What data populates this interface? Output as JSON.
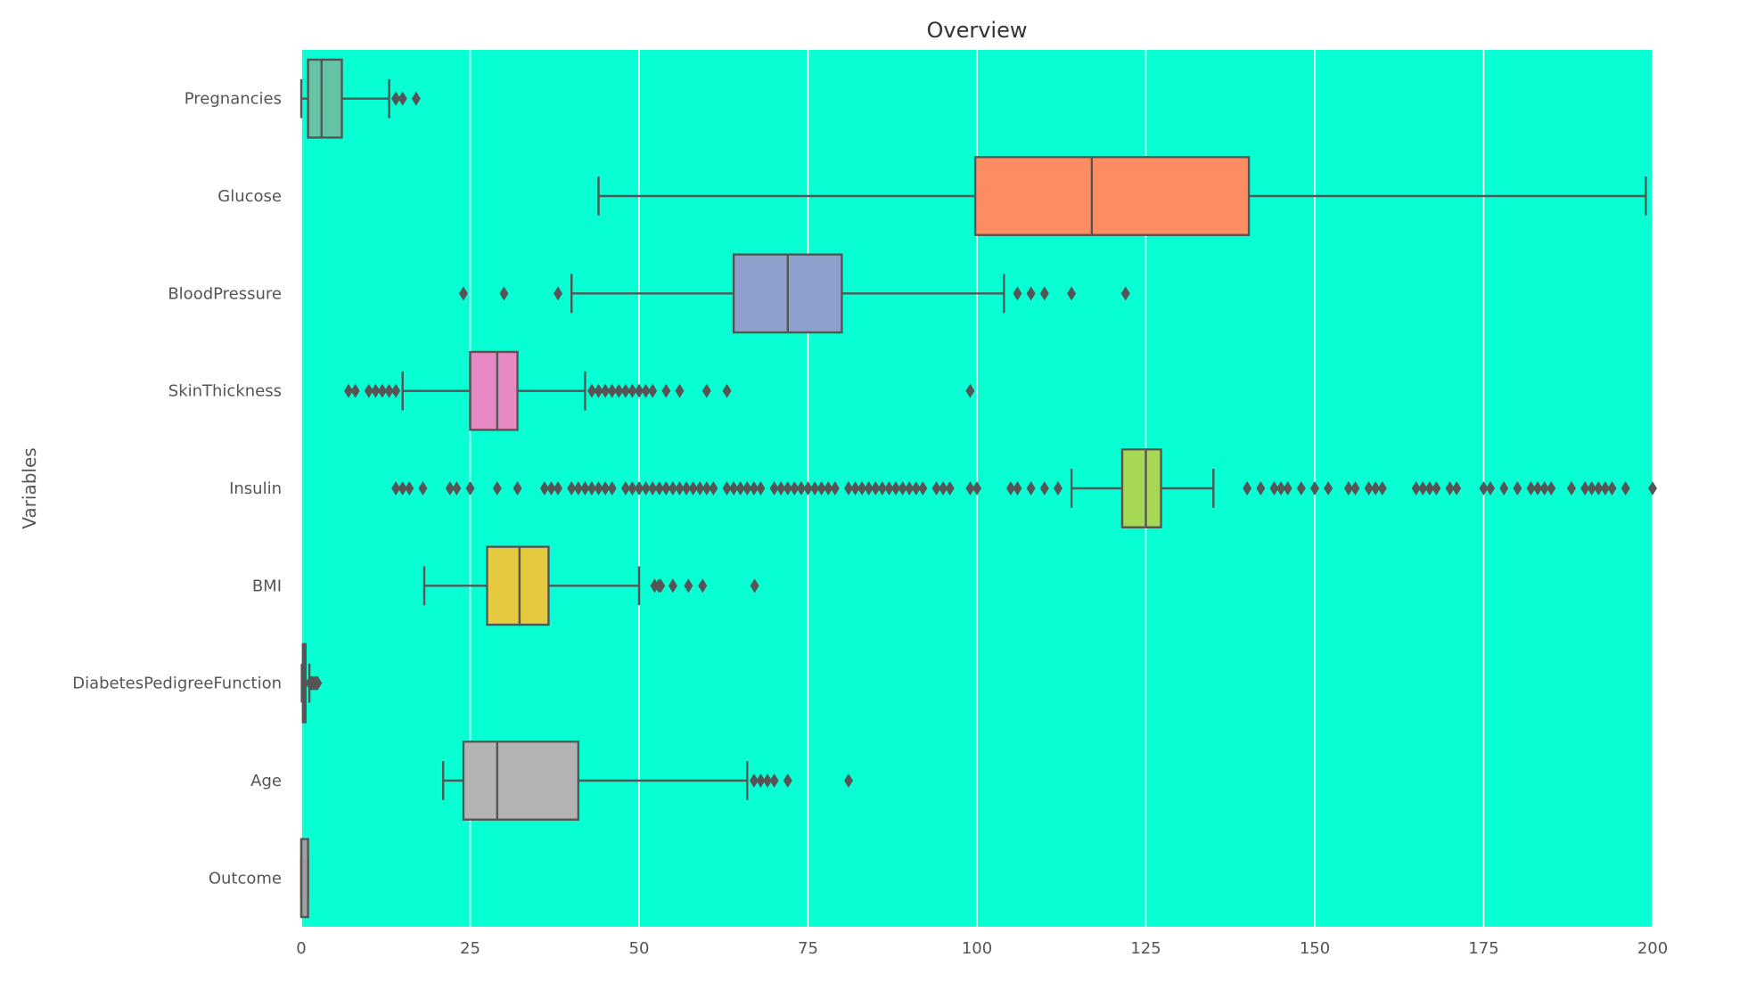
{
  "chart_data": {
    "type": "boxplot",
    "orientation": "horizontal",
    "title": "Overview",
    "xlabel": "",
    "ylabel": "Variables",
    "xlim": [
      0,
      200
    ],
    "xticks": [
      "0",
      "25",
      "50",
      "75",
      "100",
      "125",
      "150",
      "175",
      "200"
    ],
    "grid": "vertical",
    "background_color": "#08FFD3",
    "grid_color": "#FFFFFF",
    "line_color": "#555555",
    "series": [
      {
        "name": "Pregnancies",
        "color": "#66C2A5",
        "whisker_low": 0,
        "q1": 1,
        "median": 3,
        "q3": 6,
        "whisker_high": 13,
        "outliers": [
          14,
          14,
          15,
          17
        ]
      },
      {
        "name": "Glucose",
        "color": "#FC8D62",
        "whisker_low": 44,
        "q1": 99.75,
        "median": 117,
        "q3": 140.25,
        "whisker_high": 199,
        "outliers": []
      },
      {
        "name": "BloodPressure",
        "color": "#8DA0CB",
        "whisker_low": 40,
        "q1": 64,
        "median": 72,
        "q3": 80,
        "whisker_high": 104,
        "outliers": [
          24,
          30,
          38,
          106,
          108,
          110,
          114,
          122
        ]
      },
      {
        "name": "SkinThickness",
        "color": "#E78AC3",
        "whisker_low": 15,
        "q1": 25,
        "median": 29,
        "q3": 32,
        "whisker_high": 42,
        "outliers": [
          7,
          8,
          10,
          11,
          12,
          13,
          14,
          43,
          44,
          45,
          46,
          47,
          48,
          49,
          50,
          51,
          52,
          54,
          56,
          60,
          63,
          99
        ]
      },
      {
        "name": "Insulin",
        "color": "#A6D854",
        "whisker_low": 114,
        "q1": 121.5,
        "median": 125,
        "q3": 127.25,
        "whisker_high": 135,
        "outliers": [
          14,
          15,
          16,
          18,
          22,
          23,
          25,
          29,
          32,
          36,
          37,
          38,
          40,
          41,
          42,
          43,
          44,
          45,
          46,
          48,
          49,
          50,
          51,
          52,
          53,
          54,
          55,
          56,
          57,
          58,
          59,
          60,
          61,
          63,
          64,
          65,
          66,
          67,
          68,
          70,
          71,
          72,
          73,
          74,
          75,
          76,
          77,
          78,
          79,
          81,
          82,
          83,
          84,
          85,
          86,
          87,
          88,
          89,
          90,
          91,
          92,
          94,
          95,
          96,
          99,
          100,
          105,
          106,
          108,
          110,
          112,
          140,
          142,
          144,
          145,
          146,
          148,
          150,
          152,
          155,
          156,
          158,
          159,
          160,
          165,
          166,
          167,
          168,
          170,
          171,
          175,
          176,
          178,
          180,
          182,
          183,
          184,
          185,
          188,
          190,
          191,
          192,
          193,
          194,
          196,
          200
        ]
      },
      {
        "name": "BMI",
        "color": "#E5C93F",
        "whisker_low": 18.2,
        "q1": 27.5,
        "median": 32.3,
        "q3": 36.6,
        "whisker_high": 50,
        "outliers": [
          52.3,
          52.9,
          53.2,
          55,
          57.3,
          59.4,
          67.1
        ]
      },
      {
        "name": "DiabetesPedigreeFunction",
        "color": "#FFD92F",
        "whisker_low": 0.078,
        "q1": 0.24,
        "median": 0.37,
        "q3": 0.63,
        "whisker_high": 1.2,
        "outliers": [
          1.25,
          1.3,
          1.4,
          1.5,
          1.6,
          1.7,
          1.8,
          1.9,
          2.0,
          2.1,
          2.2,
          2.3,
          2.42
        ]
      },
      {
        "name": "Age",
        "color": "#B3B3B3",
        "whisker_low": 21,
        "q1": 24,
        "median": 29,
        "q3": 41,
        "whisker_high": 66,
        "outliers": [
          67,
          68,
          69,
          70,
          72,
          81
        ]
      },
      {
        "name": "Outcome",
        "color": "#A0A0A0",
        "whisker_low": 0,
        "q1": 0,
        "median": 0,
        "q3": 1,
        "whisker_high": 1,
        "outliers": []
      }
    ]
  }
}
